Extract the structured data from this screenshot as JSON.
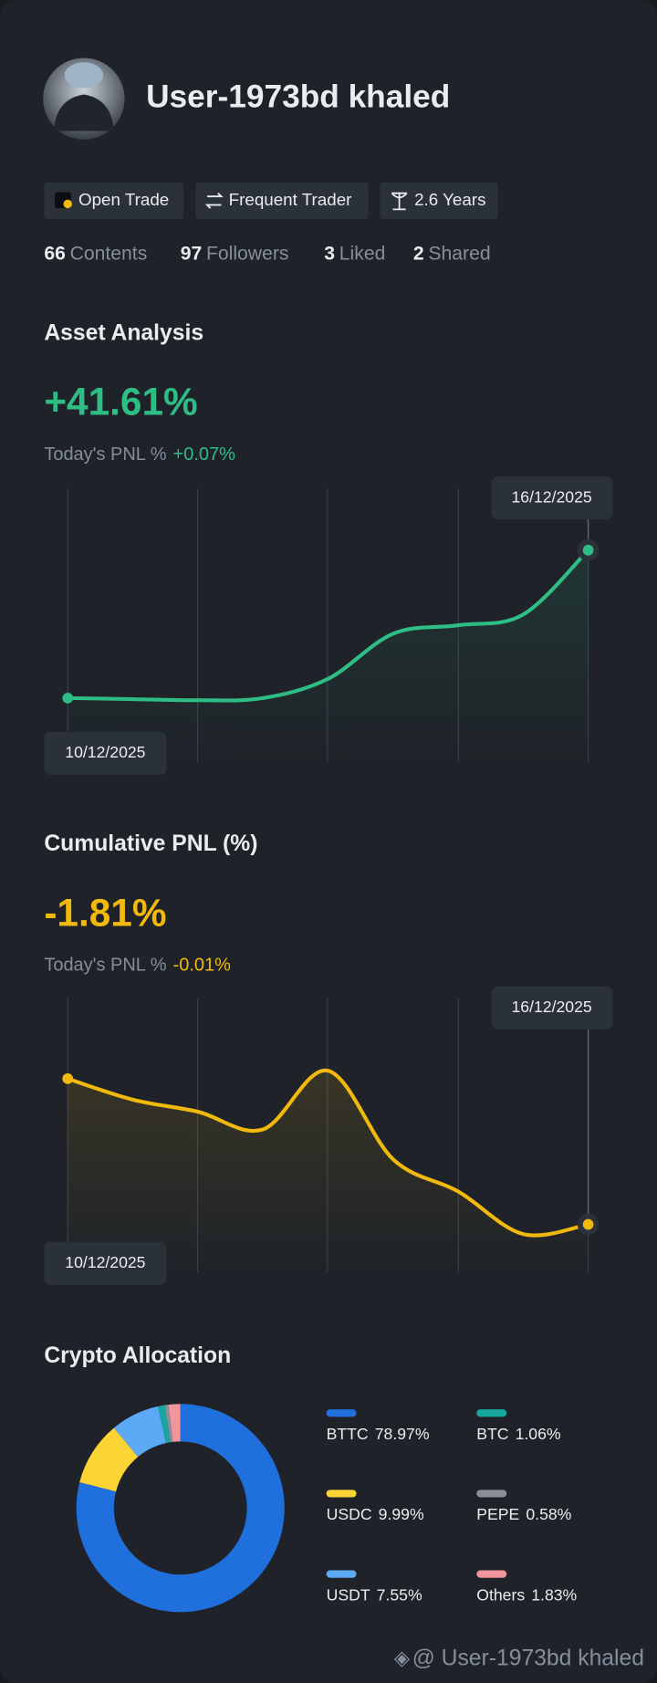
{
  "profile": {
    "name": "User-1973bd khaled",
    "badges": [
      "Open Trade",
      "Frequent Trader",
      "2.6 Years"
    ],
    "stats": [
      {
        "count": "66",
        "label": "Contents"
      },
      {
        "count": "97",
        "label": "Followers"
      },
      {
        "count": "3",
        "label": "Liked"
      },
      {
        "count": "2",
        "label": "Shared"
      }
    ]
  },
  "chart_data": [
    {
      "type": "line",
      "title": "Asset Analysis",
      "headline": "+41.61%",
      "today_label": "Today's PNL %",
      "today_pnl": "+0.07%",
      "color": "#2ebd85",
      "x": [
        "10/12/2025",
        null,
        null,
        null,
        null,
        null,
        null,
        null,
        "16/12/2025"
      ],
      "values": [
        0,
        -0.3,
        -0.6,
        0,
        5.4,
        18.1,
        20.5,
        23.5,
        41.61
      ],
      "ylim": [
        -18,
        59
      ]
    },
    {
      "type": "line",
      "title": "Cumulative PNL (%)",
      "headline": "-1.81%",
      "today_label": "Today's PNL %",
      "today_pnl": "-0.01%",
      "color": "#f0b90b",
      "x": [
        "10/12/2025",
        null,
        null,
        null,
        null,
        null,
        null,
        null,
        "16/12/2025"
      ],
      "values": [
        0,
        -0.26,
        -0.41,
        -0.63,
        0.1,
        -1.0,
        -1.4,
        -1.93,
        -1.81
      ],
      "ylim": [
        -2.4,
        1
      ]
    },
    {
      "type": "pie",
      "title": "Crypto Allocation",
      "categories": [
        "BTTC",
        "USDC",
        "USDT",
        "BTC",
        "PEPE",
        "Others"
      ],
      "values": [
        78.97,
        9.99,
        7.55,
        1.06,
        0.58,
        1.83
      ],
      "value_labels": [
        "78.97%",
        "9.99%",
        "7.55%",
        "1.06%",
        "0.58%",
        "1.83%"
      ],
      "colors": [
        "#1f6fdc",
        "#fcd535",
        "#5ca9f6",
        "#17a7a0",
        "#8a8f98",
        "#f2959c"
      ]
    }
  ],
  "footer": "@ User-1973bd khaled"
}
